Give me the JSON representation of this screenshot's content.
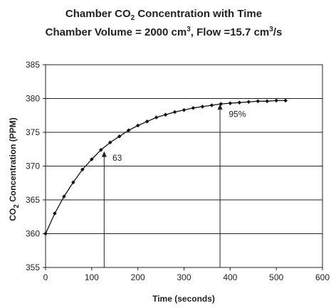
{
  "chart_data": {
    "type": "line",
    "title": {
      "line1": {
        "a": "Chamber CO",
        "b": "2",
        "c": " Concentration with Time"
      },
      "line2": {
        "a": "Chamber Volume = 2000 cm",
        "b": "3",
        "c": ", Flow =15.7 cm",
        "d": "3",
        "e": "/s"
      }
    },
    "xlabel": "Time (seconds)",
    "ylabel": {
      "a": "CO",
      "b": "2",
      "c": " Concentration (PPM)"
    },
    "xlim": [
      0,
      600
    ],
    "ylim": [
      355,
      385
    ],
    "xticks": [
      "0",
      "100",
      "200",
      "300",
      "400",
      "500",
      "600"
    ],
    "yticks": [
      "355",
      "360",
      "365",
      "370",
      "375",
      "380",
      "385"
    ],
    "grid": {
      "horizontal": true,
      "vertical": false
    },
    "legend": "none",
    "series": [
      {
        "color": "#111111",
        "marker": "diamond",
        "x": [
          0,
          20,
          40,
          60,
          80,
          100,
          120,
          140,
          160,
          180,
          200,
          220,
          240,
          260,
          280,
          300,
          320,
          340,
          360,
          380,
          400,
          420,
          440,
          460,
          480,
          500,
          520
        ],
        "y": [
          360.0,
          363.0,
          365.5,
          367.6,
          369.5,
          371.0,
          372.4,
          373.5,
          374.4,
          375.3,
          376.0,
          376.6,
          377.2,
          377.6,
          378.0,
          378.3,
          378.6,
          378.8,
          379.0,
          379.2,
          379.3,
          379.4,
          379.5,
          379.6,
          379.6,
          379.7,
          379.7
        ]
      }
    ],
    "annotations": [
      {
        "label": "63",
        "x": 127,
        "y_from": 355,
        "y_to": 372.2,
        "text_x": 145,
        "text_y": 371.2
      },
      {
        "label": "95%",
        "x": 378,
        "y_from": 355,
        "y_to": 379.2,
        "text_x": 397,
        "text_y": 377.7
      }
    ]
  }
}
